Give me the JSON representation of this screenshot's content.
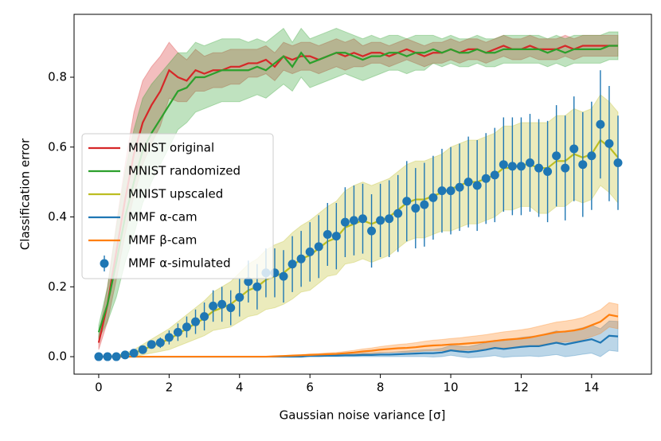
{
  "chart_data": {
    "type": "line",
    "xlabel": "Gaussian noise variance [σ]",
    "ylabel": "Classification error",
    "xlim": [
      -0.7,
      15.7
    ],
    "ylim": [
      -0.05,
      0.98
    ],
    "xticks": [
      0,
      2,
      4,
      6,
      8,
      10,
      12,
      14
    ],
    "yticks": [
      {
        "value": 0,
        "label": "0.0"
      },
      0.2,
      0.4,
      0.6,
      0.8
    ],
    "legend": "center left",
    "x": [
      0,
      0.25,
      0.5,
      0.75,
      1,
      1.25,
      1.5,
      1.75,
      2,
      2.25,
      2.5,
      2.75,
      3,
      3.25,
      3.5,
      3.75,
      4,
      4.25,
      4.5,
      4.75,
      5,
      5.25,
      5.5,
      5.75,
      6,
      6.25,
      6.5,
      6.75,
      7,
      7.25,
      7.5,
      7.75,
      8,
      8.25,
      8.5,
      8.75,
      9,
      9.25,
      9.5,
      9.75,
      10,
      10.25,
      10.5,
      10.75,
      11,
      11.25,
      11.5,
      11.75,
      12,
      12.25,
      12.5,
      12.75,
      13,
      13.25,
      13.5,
      13.75,
      14,
      14.25,
      14.5,
      14.75
    ],
    "series": [
      {
        "name": "MNIST original",
        "color": "#d62728",
        "style": "line",
        "values": [
          0.04,
          0.15,
          0.3,
          0.45,
          0.58,
          0.67,
          0.72,
          0.76,
          0.82,
          0.8,
          0.79,
          0.82,
          0.81,
          0.82,
          0.82,
          0.83,
          0.83,
          0.84,
          0.84,
          0.85,
          0.83,
          0.86,
          0.85,
          0.86,
          0.86,
          0.85,
          0.86,
          0.87,
          0.86,
          0.87,
          0.86,
          0.87,
          0.87,
          0.86,
          0.87,
          0.88,
          0.87,
          0.86,
          0.87,
          0.87,
          0.88,
          0.87,
          0.88,
          0.88,
          0.87,
          0.88,
          0.89,
          0.88,
          0.88,
          0.89,
          0.88,
          0.88,
          0.88,
          0.89,
          0.88,
          0.89,
          0.89,
          0.89,
          0.89,
          0.89
        ],
        "error": [
          0.02,
          0.05,
          0.08,
          0.1,
          0.12,
          0.12,
          0.11,
          0.1,
          0.08,
          0.07,
          0.06,
          0.06,
          0.05,
          0.05,
          0.05,
          0.05,
          0.05,
          0.04,
          0.04,
          0.04,
          0.04,
          0.04,
          0.04,
          0.04,
          0.04,
          0.04,
          0.04,
          0.04,
          0.04,
          0.04,
          0.03,
          0.03,
          0.03,
          0.03,
          0.03,
          0.03,
          0.03,
          0.03,
          0.03,
          0.03,
          0.03,
          0.03,
          0.03,
          0.03,
          0.03,
          0.03,
          0.03,
          0.03,
          0.03,
          0.03,
          0.03,
          0.03,
          0.03,
          0.03,
          0.03,
          0.03,
          0.03,
          0.03,
          0.03,
          0.03
        ]
      },
      {
        "name": "MNIST randomized",
        "color": "#2ca02c",
        "style": "line",
        "values": [
          0.07,
          0.15,
          0.27,
          0.4,
          0.5,
          0.59,
          0.64,
          0.68,
          0.72,
          0.76,
          0.77,
          0.8,
          0.8,
          0.81,
          0.82,
          0.82,
          0.82,
          0.82,
          0.83,
          0.82,
          0.84,
          0.86,
          0.83,
          0.87,
          0.84,
          0.85,
          0.86,
          0.87,
          0.87,
          0.86,
          0.85,
          0.86,
          0.86,
          0.87,
          0.87,
          0.86,
          0.87,
          0.87,
          0.88,
          0.87,
          0.88,
          0.87,
          0.87,
          0.88,
          0.87,
          0.87,
          0.88,
          0.88,
          0.88,
          0.88,
          0.88,
          0.87,
          0.88,
          0.87,
          0.88,
          0.88,
          0.88,
          0.88,
          0.89,
          0.89
        ],
        "error": [
          0.02,
          0.05,
          0.1,
          0.13,
          0.15,
          0.15,
          0.14,
          0.13,
          0.12,
          0.11,
          0.1,
          0.1,
          0.09,
          0.09,
          0.09,
          0.09,
          0.09,
          0.08,
          0.08,
          0.08,
          0.08,
          0.08,
          0.07,
          0.07,
          0.07,
          0.07,
          0.07,
          0.07,
          0.06,
          0.06,
          0.06,
          0.06,
          0.05,
          0.05,
          0.05,
          0.05,
          0.05,
          0.05,
          0.04,
          0.04,
          0.04,
          0.04,
          0.04,
          0.04,
          0.04,
          0.04,
          0.04,
          0.04,
          0.04,
          0.04,
          0.04,
          0.04,
          0.04,
          0.04,
          0.04,
          0.04,
          0.04,
          0.04,
          0.04,
          0.04
        ]
      },
      {
        "name": "MNIST upscaled",
        "color": "#bcbd22",
        "style": "line",
        "values": [
          0,
          0,
          0.002,
          0.005,
          0.01,
          0.02,
          0.03,
          0.04,
          0.05,
          0.065,
          0.08,
          0.095,
          0.11,
          0.13,
          0.14,
          0.15,
          0.17,
          0.19,
          0.2,
          0.22,
          0.23,
          0.24,
          0.26,
          0.28,
          0.29,
          0.31,
          0.33,
          0.34,
          0.37,
          0.38,
          0.39,
          0.38,
          0.39,
          0.4,
          0.42,
          0.44,
          0.45,
          0.45,
          0.46,
          0.47,
          0.48,
          0.49,
          0.5,
          0.5,
          0.51,
          0.52,
          0.54,
          0.54,
          0.55,
          0.55,
          0.54,
          0.54,
          0.56,
          0.56,
          0.58,
          0.57,
          0.58,
          0.62,
          0.6,
          0.57
        ],
        "error": [
          0,
          0,
          0.002,
          0.005,
          0.01,
          0.015,
          0.02,
          0.025,
          0.03,
          0.035,
          0.04,
          0.045,
          0.05,
          0.055,
          0.06,
          0.065,
          0.07,
          0.075,
          0.08,
          0.085,
          0.09,
          0.09,
          0.095,
          0.095,
          0.1,
          0.1,
          0.1,
          0.105,
          0.105,
          0.11,
          0.11,
          0.11,
          0.11,
          0.11,
          0.11,
          0.11,
          0.11,
          0.11,
          0.11,
          0.11,
          0.12,
          0.12,
          0.12,
          0.12,
          0.12,
          0.12,
          0.12,
          0.12,
          0.12,
          0.12,
          0.13,
          0.13,
          0.13,
          0.13,
          0.13,
          0.13,
          0.13,
          0.13,
          0.13,
          0.13
        ]
      },
      {
        "name": "MMF α-cam",
        "color": "#1f77b4",
        "style": "line",
        "values": [
          0,
          0,
          0,
          0,
          0,
          0,
          0,
          0,
          0,
          0,
          0,
          0,
          0,
          0,
          0,
          0,
          0,
          0,
          0,
          0,
          0,
          0,
          0,
          0,
          0.002,
          0.002,
          0.003,
          0.003,
          0.004,
          0.004,
          0.005,
          0.005,
          0.006,
          0.006,
          0.007,
          0.008,
          0.009,
          0.01,
          0.01,
          0.012,
          0.018,
          0.015,
          0.013,
          0.016,
          0.02,
          0.025,
          0.022,
          0.025,
          0.028,
          0.03,
          0.03,
          0.035,
          0.04,
          0.035,
          0.04,
          0.045,
          0.05,
          0.04,
          0.06,
          0.058
        ],
        "error": [
          0,
          0,
          0,
          0,
          0,
          0,
          0,
          0,
          0,
          0,
          0,
          0,
          0,
          0,
          0,
          0,
          0,
          0,
          0,
          0,
          0,
          0,
          0,
          0,
          0.002,
          0.002,
          0.003,
          0.003,
          0.004,
          0.004,
          0.005,
          0.005,
          0.006,
          0.006,
          0.007,
          0.008,
          0.009,
          0.01,
          0.011,
          0.012,
          0.014,
          0.015,
          0.016,
          0.018,
          0.02,
          0.022,
          0.024,
          0.025,
          0.027,
          0.028,
          0.03,
          0.032,
          0.034,
          0.035,
          0.037,
          0.038,
          0.04,
          0.04,
          0.042,
          0.043
        ]
      },
      {
        "name": "MMF β-cam",
        "color": "#ff7f0e",
        "style": "line",
        "values": [
          0,
          0,
          0,
          0,
          0,
          0,
          0,
          0,
          0,
          0,
          0,
          0,
          0,
          0,
          0,
          0,
          0,
          0,
          0,
          0,
          0.001,
          0.002,
          0.003,
          0.004,
          0.005,
          0.006,
          0.007,
          0.008,
          0.01,
          0.012,
          0.015,
          0.017,
          0.02,
          0.022,
          0.024,
          0.025,
          0.027,
          0.03,
          0.032,
          0.033,
          0.035,
          0.036,
          0.038,
          0.04,
          0.042,
          0.045,
          0.048,
          0.05,
          0.052,
          0.055,
          0.06,
          0.065,
          0.07,
          0.072,
          0.075,
          0.08,
          0.09,
          0.1,
          0.12,
          0.115
        ],
        "error": [
          0,
          0,
          0,
          0,
          0,
          0,
          0,
          0,
          0,
          0,
          0,
          0,
          0,
          0,
          0,
          0,
          0,
          0,
          0,
          0,
          0.001,
          0.001,
          0.002,
          0.002,
          0.003,
          0.003,
          0.004,
          0.004,
          0.005,
          0.006,
          0.007,
          0.008,
          0.009,
          0.01,
          0.011,
          0.012,
          0.013,
          0.014,
          0.015,
          0.016,
          0.017,
          0.018,
          0.019,
          0.02,
          0.021,
          0.022,
          0.023,
          0.024,
          0.025,
          0.026,
          0.027,
          0.028,
          0.029,
          0.03,
          0.031,
          0.032,
          0.033,
          0.034,
          0.035,
          0.035
        ]
      },
      {
        "name": "MMF α-simulated",
        "color": "#1f77b4",
        "style": "errorbar",
        "values": [
          0,
          0,
          0,
          0.005,
          0.01,
          0.02,
          0.035,
          0.04,
          0.055,
          0.07,
          0.085,
          0.1,
          0.115,
          0.145,
          0.15,
          0.14,
          0.17,
          0.215,
          0.2,
          0.24,
          0.24,
          0.23,
          0.265,
          0.28,
          0.3,
          0.315,
          0.35,
          0.345,
          0.385,
          0.39,
          0.395,
          0.36,
          0.39,
          0.395,
          0.41,
          0.445,
          0.425,
          0.435,
          0.455,
          0.475,
          0.475,
          0.485,
          0.5,
          0.49,
          0.51,
          0.52,
          0.55,
          0.545,
          0.545,
          0.555,
          0.54,
          0.53,
          0.575,
          0.54,
          0.595,
          0.55,
          0.575,
          0.665,
          0.61,
          0.555
        ],
        "error": [
          0,
          0,
          0.002,
          0.004,
          0.006,
          0.008,
          0.01,
          0.015,
          0.02,
          0.025,
          0.03,
          0.035,
          0.04,
          0.045,
          0.05,
          0.05,
          0.055,
          0.06,
          0.065,
          0.07,
          0.07,
          0.075,
          0.08,
          0.08,
          0.085,
          0.09,
          0.09,
          0.095,
          0.1,
          0.1,
          0.1,
          0.105,
          0.105,
          0.11,
          0.11,
          0.115,
          0.115,
          0.12,
          0.12,
          0.12,
          0.125,
          0.125,
          0.13,
          0.13,
          0.13,
          0.135,
          0.135,
          0.14,
          0.14,
          0.14,
          0.14,
          0.145,
          0.145,
          0.15,
          0.15,
          0.15,
          0.155,
          0.155,
          0.165,
          0.135
        ]
      }
    ]
  }
}
